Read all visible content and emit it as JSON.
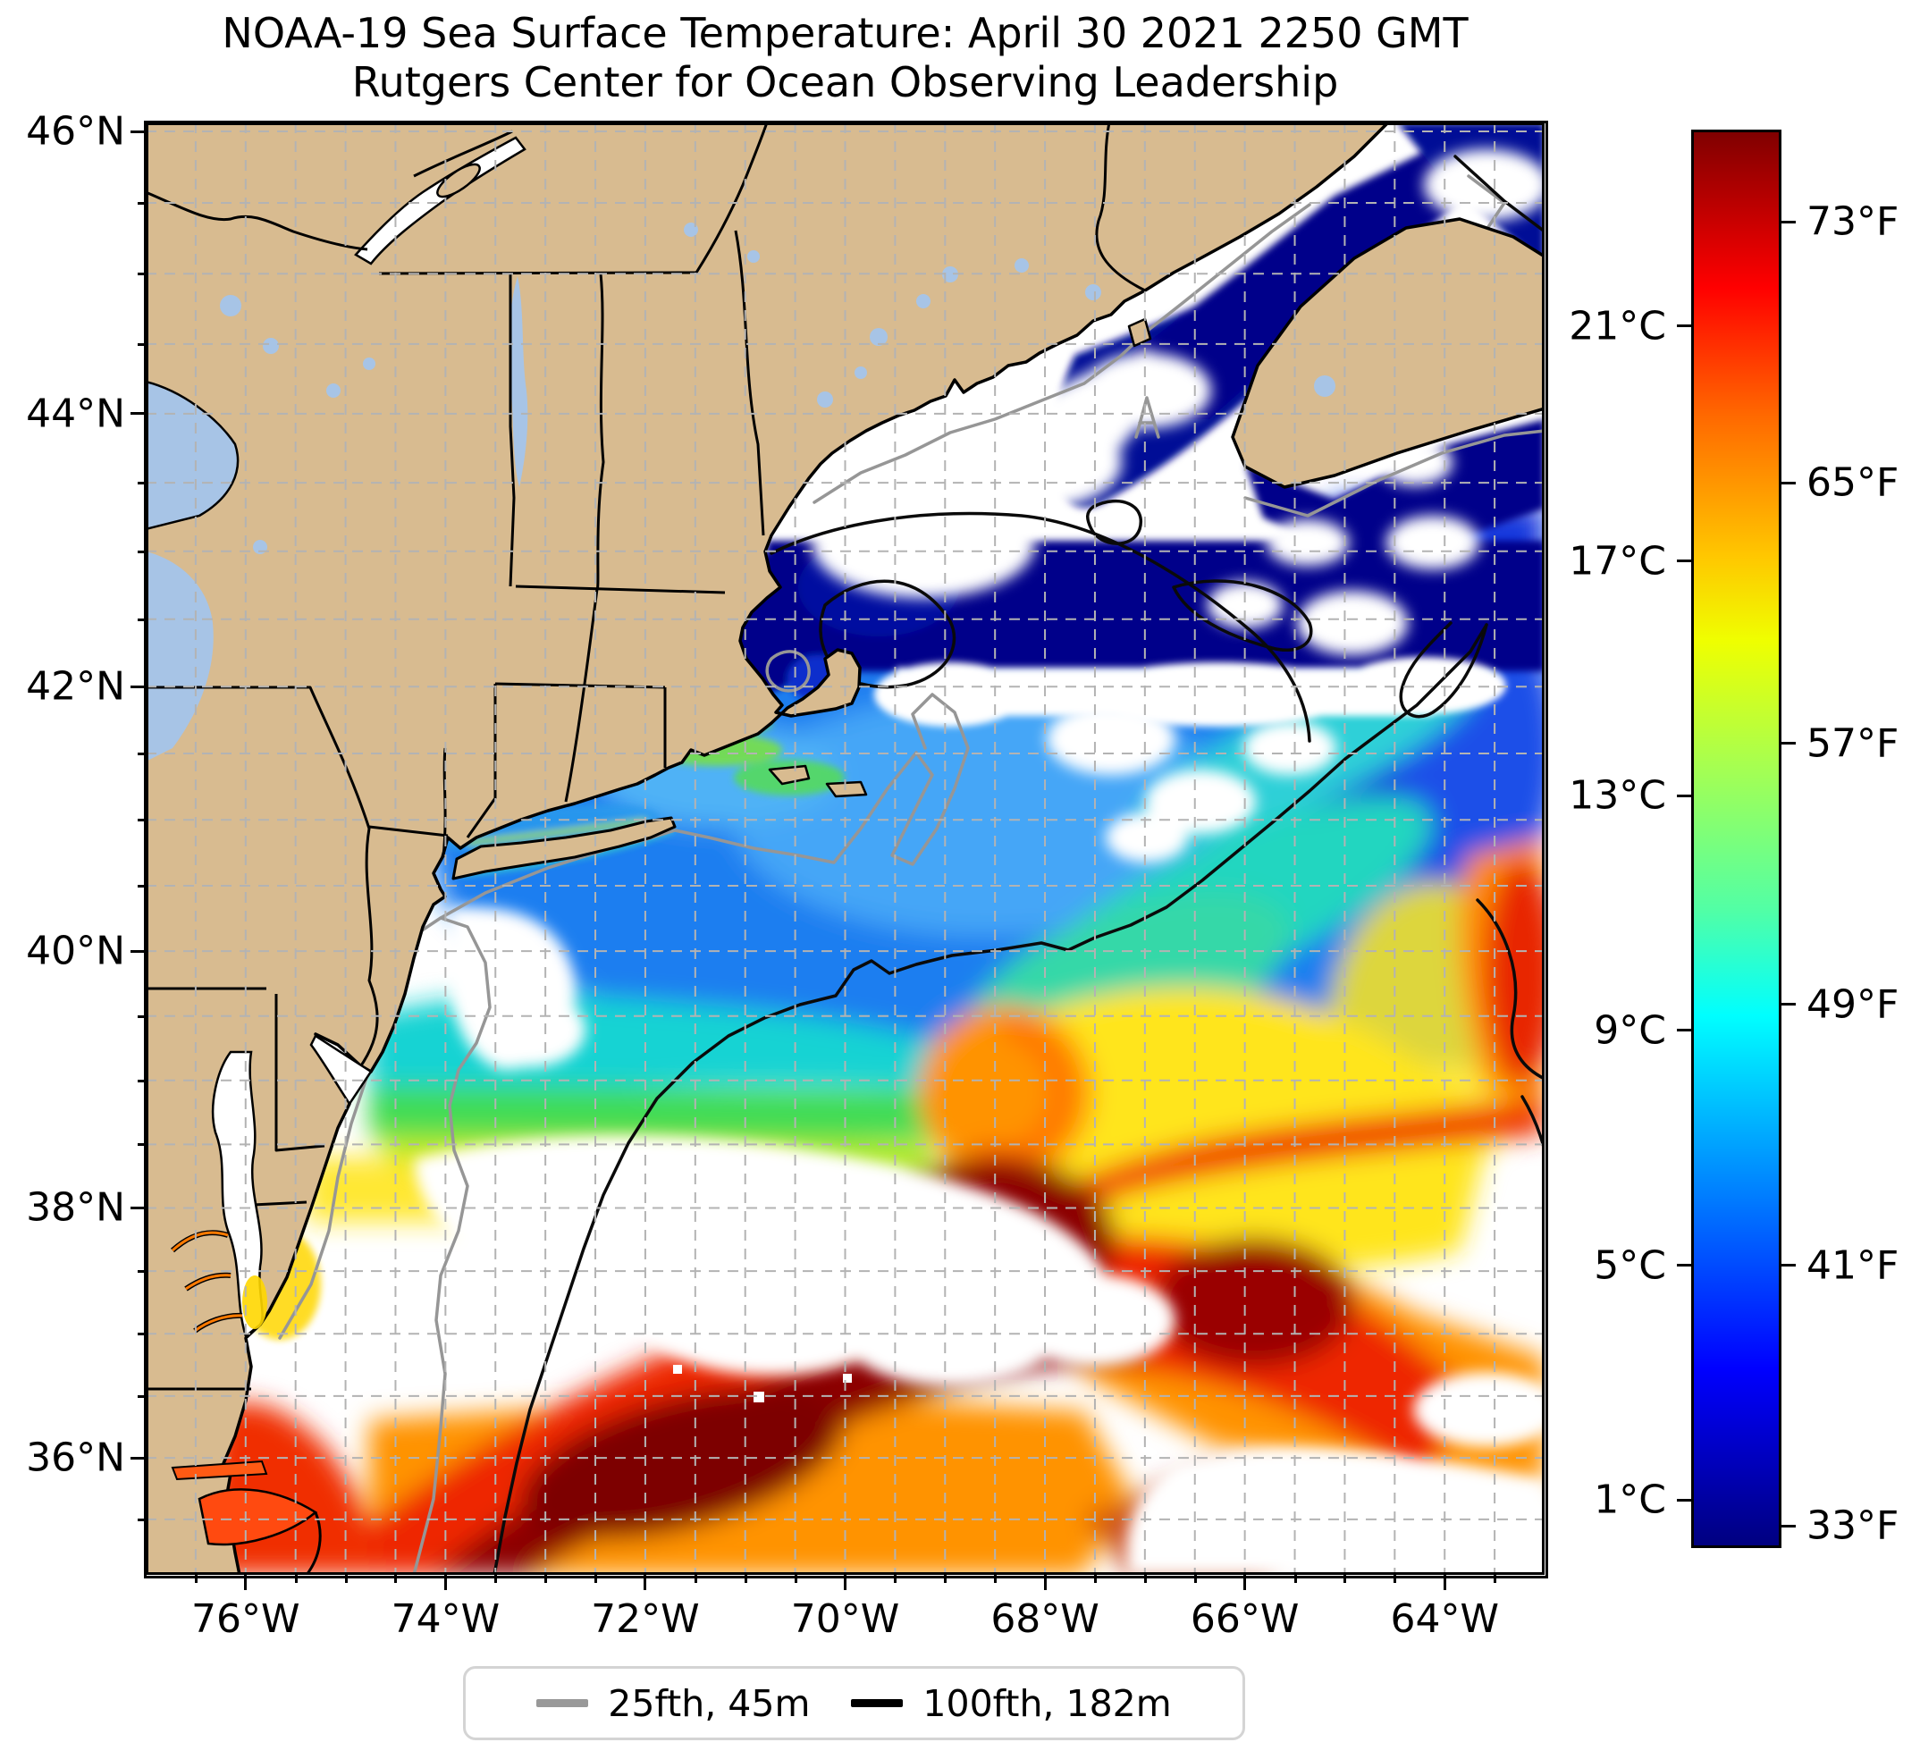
{
  "title": {
    "line1": "NOAA-19 Sea Surface Temperature: April 30 2021 2250 GMT",
    "line2": "Rutgers Center for Ocean Observing Leadership"
  },
  "axes": {
    "lon_major": [
      {
        "value": 76,
        "label": "76°W"
      },
      {
        "value": 74,
        "label": "74°W"
      },
      {
        "value": 72,
        "label": "72°W"
      },
      {
        "value": 70,
        "label": "70°W"
      },
      {
        "value": 68,
        "label": "68°W"
      },
      {
        "value": 66,
        "label": "66°W"
      },
      {
        "value": 64,
        "label": "64°W"
      }
    ],
    "lat_major": [
      {
        "value": 46,
        "label": "46°N"
      },
      {
        "value": 44,
        "label": "44°N"
      },
      {
        "value": 42,
        "label": "42°N"
      },
      {
        "value": 40,
        "label": "40°N"
      },
      {
        "value": 38,
        "label": "38°N"
      },
      {
        "value": 36,
        "label": "36°N"
      }
    ],
    "minor_step_deg": 0.5,
    "lon_range": [
      77.0,
      63.0
    ],
    "lat_range": [
      35.05,
      46.06
    ],
    "grid_color": "#b3b3b3"
  },
  "colorbar": {
    "vmin_c": 0.18,
    "vmax_c": 24.35,
    "c_ticks": [
      {
        "value": 21,
        "label": "21°C"
      },
      {
        "value": 17,
        "label": "17°C"
      },
      {
        "value": 13,
        "label": "13°C"
      },
      {
        "value": 9,
        "label": "9°C"
      },
      {
        "value": 5,
        "label": "5°C"
      },
      {
        "value": 1,
        "label": "1°C"
      }
    ],
    "f_ticks": [
      {
        "value_c": 22.778,
        "label": "73°F"
      },
      {
        "value_c": 18.333,
        "label": "65°F"
      },
      {
        "value_c": 13.889,
        "label": "57°F"
      },
      {
        "value_c": 9.444,
        "label": "49°F"
      },
      {
        "value_c": 5.0,
        "label": "41°F"
      },
      {
        "value_c": 0.556,
        "label": "33°F"
      }
    ],
    "jet_stops": [
      {
        "pct": 0,
        "color": "#800000"
      },
      {
        "pct": 7,
        "color": "#d10000"
      },
      {
        "pct": 11,
        "color": "#ff0000"
      },
      {
        "pct": 20,
        "color": "#ff6800"
      },
      {
        "pct": 30,
        "color": "#ffc700"
      },
      {
        "pct": 36,
        "color": "#efff00"
      },
      {
        "pct": 45,
        "color": "#a5ff52"
      },
      {
        "pct": 50,
        "color": "#7bff7b"
      },
      {
        "pct": 55,
        "color": "#52ffa5"
      },
      {
        "pct": 62.5,
        "color": "#00ffff"
      },
      {
        "pct": 75,
        "color": "#0080ff"
      },
      {
        "pct": 87.5,
        "color": "#0000ff"
      },
      {
        "pct": 100,
        "color": "#000080"
      }
    ]
  },
  "legend": {
    "items": [
      {
        "label": "25fth, 45m",
        "color": "#999999"
      },
      {
        "label": "100fth, 182m",
        "color": "#000000"
      }
    ]
  },
  "map": {
    "land_color": "#d8bb90",
    "lake_color": "#a7c4e6",
    "cloud_color": "#ffffff",
    "contour_45m_color": "#969696",
    "contour_182m_color": "#0a0a0a"
  },
  "chart_data": {
    "type": "heatmap",
    "title": "NOAA-19 Sea Surface Temperature: April 30 2021 2250 GMT",
    "subtitle": "Rutgers Center for Ocean Observing Leadership",
    "projection": "Mercator",
    "lon_ticks_deg_w": [
      76,
      74,
      72,
      70,
      68,
      66,
      64
    ],
    "lat_ticks_deg_n": [
      46,
      44,
      42,
      40,
      38,
      36
    ],
    "colorbar_c_ticks": [
      21,
      17,
      13,
      9,
      5,
      1
    ],
    "colorbar_f_ticks": [
      73,
      65,
      57,
      49,
      41,
      33
    ],
    "colormap": "jet",
    "contour_legend": [
      "25fth, 45m (gray)",
      "100fth, 182m (black)"
    ],
    "features": [
      {
        "region": "Bay of Fundy / eastern Gulf of Maine band 42.5-45N",
        "sst_c": "1-3 (dark navy)"
      },
      {
        "region": "Gulf of Maine south of Cape Cod to Georges Bank",
        "sst_c": "7-10 (blue)"
      },
      {
        "region": "Mid-shelf 38.5-40N",
        "sst_c": "11-15 (cyan-green-yellow)"
      },
      {
        "region": "Warm-core ring near 68.3W 39.2N",
        "sst_c": "17-19 (orange)"
      },
      {
        "region": "Gulf Stream 35-38.5N diagonal band",
        "sst_c": "22-24 (red / dark red)"
      },
      {
        "region": "Clouds / no data",
        "sst_c": "white"
      }
    ]
  }
}
